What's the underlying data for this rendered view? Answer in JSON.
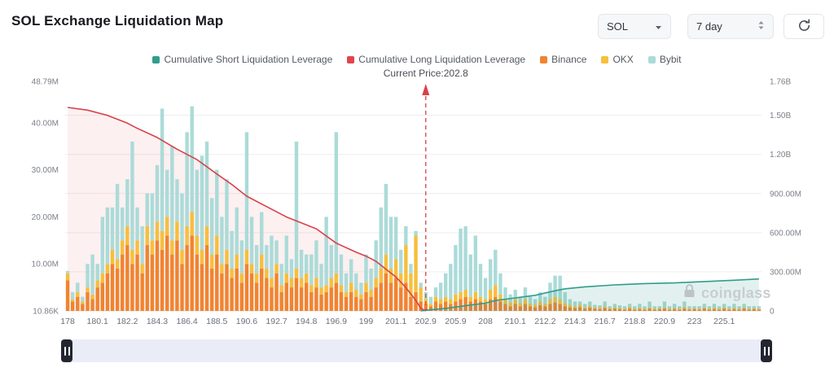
{
  "header": {
    "title": "SOL Exchange Liquidation Map",
    "symbol_select": {
      "value": "SOL"
    },
    "range_select": {
      "value": "7 day"
    }
  },
  "legend": {
    "items": [
      {
        "label": "Cumulative Short Liquidation Leverage",
        "color": "#2f9d8c"
      },
      {
        "label": "Cumulative Long Liquidation Leverage",
        "color": "#e1444d"
      },
      {
        "label": "Binance",
        "color": "#f08430"
      },
      {
        "label": "OKX",
        "color": "#f6bf3c"
      },
      {
        "label": "Bybit",
        "color": "#abdbd8"
      }
    ]
  },
  "watermark": {
    "text": "coinglass"
  },
  "chart_data": {
    "type": "bar",
    "title": "SOL Exchange Liquidation Map",
    "current_price": 202.8,
    "current_price_label": "Current Price:202.8",
    "current_price_index": 72,
    "n_bars": 140,
    "price_start": 178,
    "price_step": 0.35,
    "x_tick_step": 6,
    "x_ticks": [
      "178",
      "180.1",
      "182.2",
      "184.3",
      "186.4",
      "188.5",
      "190.6",
      "192.7",
      "194.8",
      "196.9",
      "199",
      "201.1",
      "202.9",
      "205.9",
      "208",
      "210.1",
      "212.2",
      "214.3",
      "216.7",
      "218.8",
      "220.9",
      "223",
      "225.1"
    ],
    "left_axis": {
      "max": 48.79,
      "unit": "M",
      "ticks": [
        {
          "v": 48.79,
          "label": "48.79M"
        },
        {
          "v": 40,
          "label": "40.00M"
        },
        {
          "v": 30,
          "label": "30.00M"
        },
        {
          "v": 20,
          "label": "20.00M"
        },
        {
          "v": 10,
          "label": "10.00M"
        },
        {
          "v": 0.01086,
          "label": "10.86K"
        }
      ]
    },
    "right_axis": {
      "max": 1.76,
      "unit": "B",
      "ticks": [
        {
          "v": 1.76,
          "label": "1.76B",
          "grid": false
        },
        {
          "v": 1.5,
          "label": "1.50B",
          "grid": true
        },
        {
          "v": 1.2,
          "label": "1.20B",
          "grid": true
        },
        {
          "v": 0.9,
          "label": "900.00M",
          "grid": true
        },
        {
          "v": 0.6,
          "label": "600.00M",
          "grid": true
        },
        {
          "v": 0.3,
          "label": "300.00M",
          "grid": true
        },
        {
          "v": 0,
          "label": "0",
          "grid": false
        }
      ]
    },
    "bars": {
      "stack_unit": "M",
      "series": [
        {
          "name": "Binance",
          "color": "#f08430",
          "values": [
            6.5,
            2,
            3,
            1.5,
            4,
            2.5,
            5,
            6,
            8,
            10,
            9,
            12,
            14,
            10,
            12,
            8,
            14,
            12,
            15,
            13,
            16,
            12,
            15,
            10,
            14,
            16,
            12,
            10,
            14,
            9,
            12,
            8,
            10,
            7,
            9,
            6,
            10,
            8,
            6,
            9,
            7,
            5,
            8,
            4,
            6,
            5,
            7,
            5,
            6,
            4,
            5,
            3.5,
            4,
            5,
            6,
            4,
            3,
            4,
            3,
            2.5,
            4,
            3,
            5,
            6,
            8,
            6,
            7,
            5,
            6,
            3,
            4,
            2,
            1.5,
            1,
            2,
            1.5,
            2,
            1.5,
            2,
            2.5,
            3,
            2,
            2.5,
            2,
            1.5,
            2.5,
            3,
            2,
            1.5,
            1,
            1.5,
            1,
            1.5,
            1,
            0.8,
            1.2,
            1,
            1.5,
            1.8,
            1.5,
            1,
            0.8,
            0.6,
            0.8,
            0.5,
            0.7,
            0.5,
            0.4,
            0.6,
            0.4,
            0.5,
            0.4,
            0.3,
            0.5,
            0.3,
            0.4,
            0.3,
            0.5,
            0.3,
            0.4,
            0.5,
            0.3,
            0.4,
            0.3,
            0.5,
            0.3,
            0.4,
            0.3,
            0.5,
            0.3,
            0.4,
            0.3,
            0.5,
            0.3,
            0.4,
            0.3,
            0.5,
            0.3,
            0.4,
            0.3
          ]
        },
        {
          "name": "OKX",
          "color": "#f6bf3c",
          "values": [
            1.5,
            0.5,
            1,
            0.5,
            1,
            1,
            1.5,
            2,
            2,
            3,
            2,
            3,
            4,
            3,
            3,
            2,
            4,
            3,
            4,
            4,
            4,
            3,
            4,
            3,
            4,
            5,
            4,
            3,
            4,
            3,
            4,
            2,
            3,
            2,
            3,
            2,
            3,
            2,
            2,
            3,
            2,
            2,
            2,
            1.5,
            2,
            2,
            2,
            2,
            2,
            1.5,
            2,
            1.5,
            1.5,
            2,
            2,
            1.5,
            1,
            2,
            1.5,
            1,
            2,
            1.5,
            2,
            3,
            4,
            3,
            4,
            3,
            8,
            5,
            12,
            3,
            1,
            0.5,
            1,
            1,
            1,
            1,
            1.5,
            1.5,
            1.5,
            1,
            1.5,
            1,
            1,
            2,
            2.5,
            1.5,
            1,
            0.8,
            1,
            0.7,
            1,
            0.6,
            0.5,
            0.8,
            0.6,
            1,
            1.2,
            1,
            0.7,
            0.5,
            0.4,
            0.5,
            0.3,
            0.4,
            0.3,
            0.3,
            0.4,
            0.2,
            0.3,
            0.3,
            0.2,
            0.4,
            0.2,
            0.3,
            0.2,
            0.3,
            0.2,
            0.2,
            0.3,
            0.2,
            0.3,
            0.2,
            0.4,
            0.2,
            0.2,
            0.2,
            0.3,
            0.2,
            0.3,
            0.2,
            0.3,
            0.2,
            0.3,
            0.2,
            0.3,
            0.2,
            0.2,
            0.2
          ]
        },
        {
          "name": "Bybit",
          "color": "#abdbd8",
          "values": [
            0.5,
            1.5,
            2,
            1,
            5,
            8.5,
            3.5,
            12,
            12,
            9,
            16,
            7,
            10,
            23,
            7,
            8,
            7,
            10,
            12,
            26,
            10,
            20,
            9,
            12,
            20,
            22.5,
            14,
            20,
            18,
            12,
            14,
            10,
            15,
            8,
            10,
            7,
            25,
            10,
            6,
            9,
            5,
            9,
            5,
            4.5,
            8,
            4,
            27,
            6,
            4,
            6.5,
            8,
            5,
            14.5,
            7,
            30,
            6.5,
            4,
            5,
            3.5,
            2.5,
            6,
            4.5,
            8,
            13,
            15,
            11,
            9,
            5,
            4,
            2,
            1,
            1,
            1.5,
            1.5,
            2,
            3.5,
            5,
            7.5,
            10.5,
            13.5,
            13.5,
            9,
            12,
            7,
            4.5,
            6.5,
            7.5,
            4.5,
            2.5,
            1.7,
            2,
            1.3,
            2.5,
            1.4,
            1.2,
            2,
            1.4,
            3.5,
            4.5,
            5,
            2.3,
            1.2,
            1,
            0.7,
            0.7,
            0.9,
            0.5,
            0.5,
            1,
            0.4,
            0.7,
            0.5,
            0.5,
            0.6,
            0.5,
            0.8,
            0.5,
            1.2,
            0.5,
            0.4,
            1.2,
            0.5,
            0.8,
            0.5,
            1.1,
            0.5,
            0.4,
            0.5,
            0.7,
            0.5,
            0.8,
            0.5,
            0.7,
            0.5,
            0.8,
            0.5,
            0.7,
            0.5,
            0.4,
            0.5
          ]
        }
      ]
    },
    "lines": [
      {
        "name": "Cumulative Long Liquidation Leverage",
        "axis": "right",
        "unit": "B",
        "color": "#d8414a",
        "fill": "rgba(222,66,75,0.08)",
        "points": [
          [
            0,
            1.56
          ],
          [
            4,
            1.54
          ],
          [
            8,
            1.5
          ],
          [
            12,
            1.44
          ],
          [
            14,
            1.4
          ],
          [
            18,
            1.33
          ],
          [
            22,
            1.24
          ],
          [
            26,
            1.16
          ],
          [
            30,
            1.05
          ],
          [
            33,
            0.97
          ],
          [
            36,
            0.88
          ],
          [
            40,
            0.8
          ],
          [
            44,
            0.72
          ],
          [
            48,
            0.66
          ],
          [
            50,
            0.63
          ],
          [
            54,
            0.52
          ],
          [
            58,
            0.45
          ],
          [
            60,
            0.42
          ],
          [
            62,
            0.38
          ],
          [
            64,
            0.32
          ],
          [
            66,
            0.26
          ],
          [
            68,
            0.18
          ],
          [
            70,
            0.08
          ],
          [
            71,
            0.02
          ],
          [
            72,
            0
          ]
        ]
      },
      {
        "name": "Cumulative Short Liquidation Leverage",
        "axis": "right",
        "unit": "B",
        "color": "#2f9d8c",
        "fill": "rgba(47,157,140,0.14)",
        "points": [
          [
            71,
            0
          ],
          [
            72,
            0.005
          ],
          [
            76,
            0.02
          ],
          [
            80,
            0.04
          ],
          [
            84,
            0.06
          ],
          [
            86,
            0.08
          ],
          [
            90,
            0.1
          ],
          [
            94,
            0.12
          ],
          [
            98,
            0.155
          ],
          [
            100,
            0.17
          ],
          [
            104,
            0.185
          ],
          [
            110,
            0.2
          ],
          [
            116,
            0.21
          ],
          [
            122,
            0.215
          ],
          [
            128,
            0.225
          ],
          [
            134,
            0.235
          ],
          [
            139,
            0.245
          ]
        ]
      }
    ]
  }
}
